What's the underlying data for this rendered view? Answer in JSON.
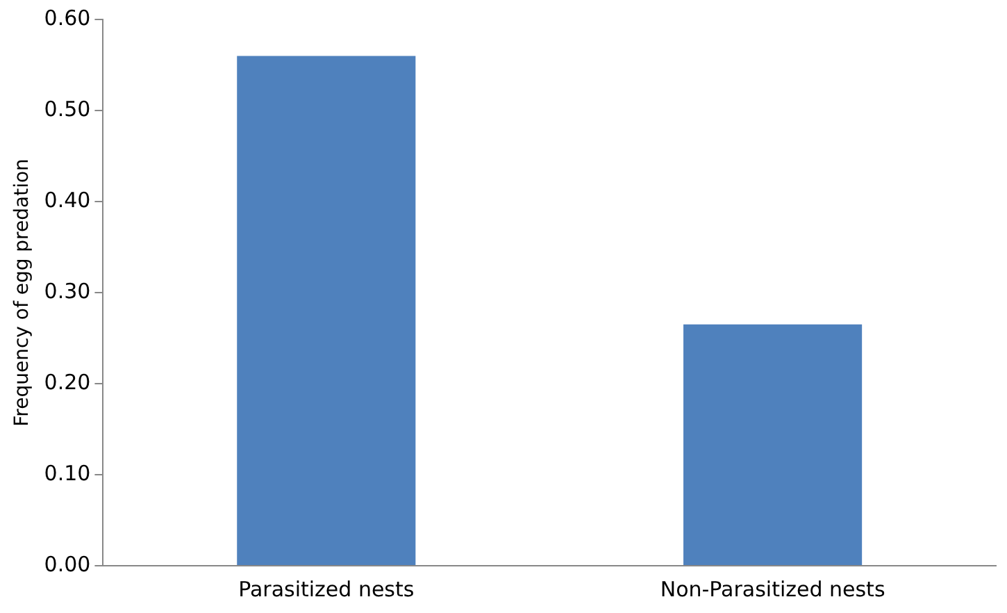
{
  "chart_data": {
    "type": "bar",
    "ylabel": "Frequency of egg predation",
    "categories": [
      "Parasitized nests",
      "Non-Parasitized nests"
    ],
    "values": [
      0.56,
      0.265
    ],
    "color": "#4f81bd",
    "ylim": [
      0,
      0.6
    ],
    "yticks": [
      {
        "value": 0,
        "label": "0.00"
      },
      {
        "value": 0.1,
        "label": "0.10"
      },
      {
        "value": 0.2,
        "label": "0.20"
      },
      {
        "value": 0.3,
        "label": "0.30"
      },
      {
        "value": 0.4,
        "label": "0.40"
      },
      {
        "value": 0.5,
        "label": "0.50"
      },
      {
        "value": 0.6,
        "label": "0.60"
      }
    ],
    "grid": false,
    "legend": false
  }
}
